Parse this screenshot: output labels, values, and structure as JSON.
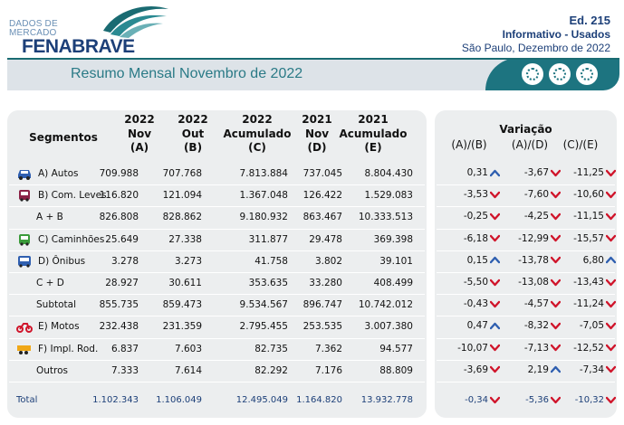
{
  "header": {
    "logo_line1": "DADOS DE",
    "logo_line2": "MERCADO",
    "logo_brand": "FENABRAVE",
    "edition": "Ed. 215",
    "report": "Informativo - Usados",
    "location_date": "São Paulo, Dezembro de 2022",
    "banner_title": "Resumo Mensal Novembro de 2022"
  },
  "table": {
    "col_segment": "Segmentos",
    "columns": [
      {
        "l1": "2022",
        "l2": "Nov",
        "l3": "(A)"
      },
      {
        "l1": "2022",
        "l2": "Out",
        "l3": "(B)"
      },
      {
        "l1": "2022",
        "l2": "Acumulado",
        "l3": "(C)"
      },
      {
        "l1": "2021",
        "l2": "Nov",
        "l3": "(D)"
      },
      {
        "l1": "2021",
        "l2": "Acumulado",
        "l3": "(E)"
      }
    ],
    "variation_title": "Variação",
    "variation_cols": [
      "(A)/(B)",
      "(A)/(D)",
      "(C)/(E)"
    ],
    "rows": [
      {
        "label": "A) Autos",
        "icon": "car-icon",
        "values": [
          "709.988",
          "707.768",
          "7.813.884",
          "737.045",
          "8.804.430"
        ],
        "var": [
          [
            "0,31",
            "up"
          ],
          [
            "-3,67",
            "down"
          ],
          [
            "-11,25",
            "down"
          ]
        ]
      },
      {
        "label": "B) Com. Leves",
        "icon": "van-icon",
        "values": [
          "116.820",
          "121.094",
          "1.367.048",
          "126.422",
          "1.529.083"
        ],
        "var": [
          [
            "-3,53",
            "down"
          ],
          [
            "-7,60",
            "down"
          ],
          [
            "-10,60",
            "down"
          ]
        ]
      },
      {
        "label": "A + B",
        "icon": "",
        "values": [
          "826.808",
          "828.862",
          "9.180.932",
          "863.467",
          "10.333.513"
        ],
        "var": [
          [
            "-0,25",
            "down"
          ],
          [
            "-4,25",
            "down"
          ],
          [
            "-11,15",
            "down"
          ]
        ]
      },
      {
        "label": "C) Caminhões",
        "icon": "truck-icon",
        "values": [
          "25.649",
          "27.338",
          "311.877",
          "29.478",
          "369.398"
        ],
        "var": [
          [
            "-6,18",
            "down"
          ],
          [
            "-12,99",
            "down"
          ],
          [
            "-15,57",
            "down"
          ]
        ]
      },
      {
        "label": "D) Ônibus",
        "icon": "bus-icon",
        "values": [
          "3.278",
          "3.273",
          "41.758",
          "3.802",
          "39.101"
        ],
        "var": [
          [
            "0,15",
            "up"
          ],
          [
            "-13,78",
            "down"
          ],
          [
            "6,80",
            "up"
          ]
        ]
      },
      {
        "label": "C + D",
        "icon": "",
        "values": [
          "28.927",
          "30.611",
          "353.635",
          "33.280",
          "408.499"
        ],
        "var": [
          [
            "-5,50",
            "down"
          ],
          [
            "-13,08",
            "down"
          ],
          [
            "-13,43",
            "down"
          ]
        ]
      },
      {
        "label": "Subtotal",
        "icon": "",
        "values": [
          "855.735",
          "859.473",
          "9.534.567",
          "896.747",
          "10.742.012"
        ],
        "var": [
          [
            "-0,43",
            "down"
          ],
          [
            "-4,57",
            "down"
          ],
          [
            "-11,24",
            "down"
          ]
        ]
      },
      {
        "label": "E) Motos",
        "icon": "motorcycle-icon",
        "values": [
          "232.438",
          "231.359",
          "2.795.455",
          "253.535",
          "3.007.380"
        ],
        "var": [
          [
            "0,47",
            "up"
          ],
          [
            "-8,32",
            "down"
          ],
          [
            "-7,05",
            "down"
          ]
        ]
      },
      {
        "label": "F) Impl. Rod.",
        "icon": "trailer-icon",
        "values": [
          "6.837",
          "7.603",
          "82.735",
          "7.362",
          "94.577"
        ],
        "var": [
          [
            "-10,07",
            "down"
          ],
          [
            "-7,13",
            "down"
          ],
          [
            "-12,52",
            "down"
          ]
        ]
      },
      {
        "label": "Outros",
        "icon": "",
        "values": [
          "7.333",
          "7.614",
          "82.292",
          "7.176",
          "88.809"
        ],
        "var": [
          [
            "-3,69",
            "down"
          ],
          [
            "2,19",
            "up"
          ],
          [
            "-7,34",
            "down"
          ]
        ]
      }
    ],
    "total": {
      "label": "Total",
      "values": [
        "1.102.343",
        "1.106.049",
        "12.495.049",
        "1.164.820",
        "13.932.778"
      ],
      "var": [
        [
          "-0,34",
          "down"
        ],
        [
          "-5,36",
          "down"
        ],
        [
          "-10,32",
          "down"
        ]
      ]
    }
  },
  "colors": {
    "up": "#2f5fb0",
    "down": "#d0152b",
    "accent": "#1d7480",
    "brand": "#1c3f78"
  }
}
